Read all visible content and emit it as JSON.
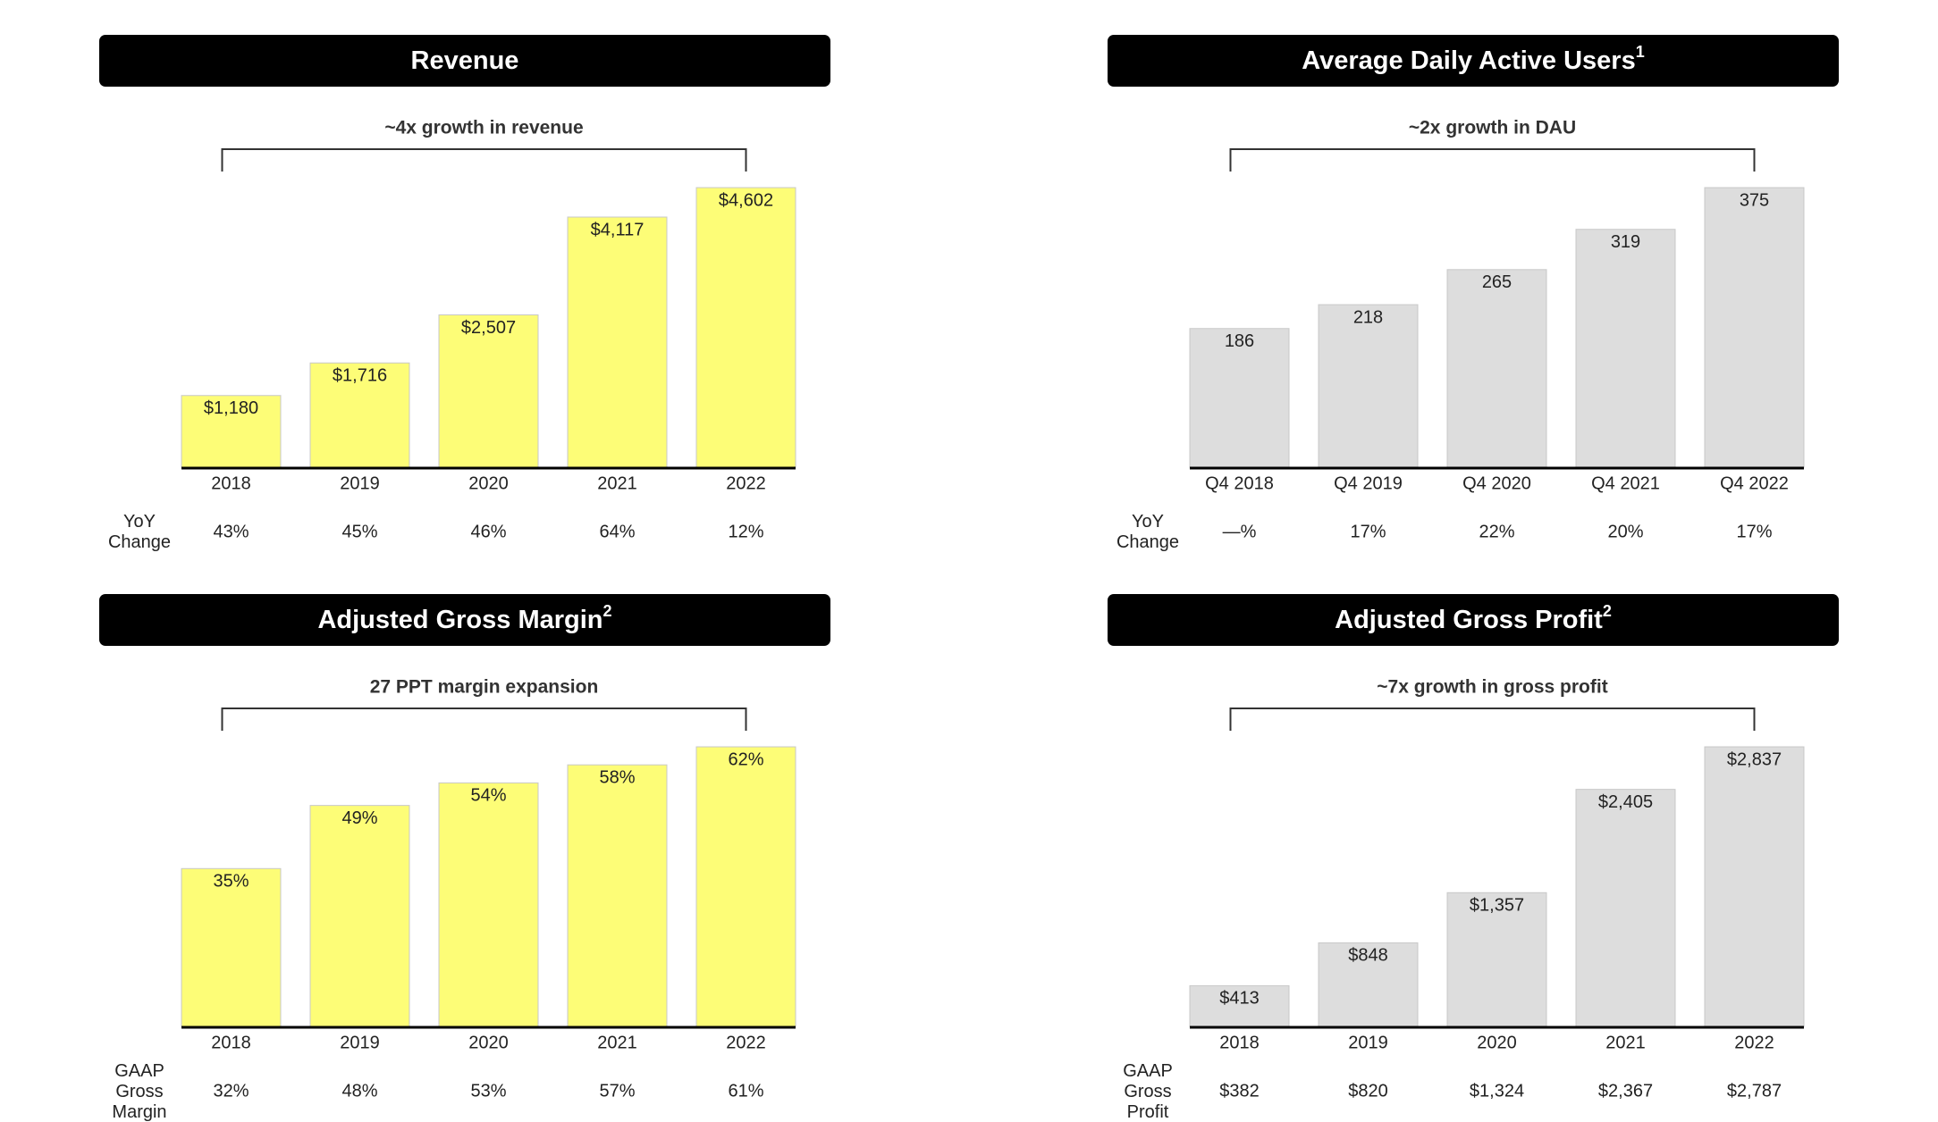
{
  "chart_data": [
    {
      "type": "bar",
      "title": "Revenue",
      "annotation": "~4x growth in revenue",
      "categories": [
        "2018",
        "2019",
        "2020",
        "2021",
        "2022"
      ],
      "values": [
        1180,
        1716,
        2507,
        4117,
        4602
      ],
      "value_labels": [
        "$1,180",
        "$1,716",
        "$2,507",
        "$4,117",
        "$4,602"
      ],
      "color": "#fdfd77",
      "row_label": "YoY Change",
      "row_values": [
        "43%",
        "45%",
        "46%",
        "64%",
        "12%"
      ]
    },
    {
      "type": "bar",
      "title": "Average Daily Active Users",
      "title_sup": "1",
      "annotation": "~2x growth in DAU",
      "categories": [
        "Q4 2018",
        "Q4 2019",
        "Q4 2020",
        "Q4 2021",
        "Q4 2022"
      ],
      "values": [
        186,
        218,
        265,
        319,
        375
      ],
      "color": "#dddddd",
      "row_label": "YoY Change",
      "row_values": [
        "—%",
        "17%",
        "22%",
        "20%",
        "17%"
      ]
    },
    {
      "type": "bar",
      "title": "Adjusted Gross Margin",
      "title_sup": "2",
      "annotation": "27 PPT margin expansion",
      "categories": [
        "2018",
        "2019",
        "2020",
        "2021",
        "2022"
      ],
      "values": [
        35,
        49,
        54,
        58,
        62
      ],
      "value_labels": [
        "35%",
        "49%",
        "54%",
        "58%",
        "62%"
      ],
      "color": "#fdfd77",
      "row_label": "GAAP Gross Margin",
      "row_values": [
        "32%",
        "48%",
        "53%",
        "57%",
        "61%"
      ]
    },
    {
      "type": "bar",
      "title": "Adjusted Gross Profit",
      "title_sup": "2",
      "annotation": "~7x growth in gross profit",
      "categories": [
        "2018",
        "2019",
        "2020",
        "2021",
        "2022"
      ],
      "values": [
        413,
        848,
        1357,
        2405,
        2837
      ],
      "value_labels": [
        "$413",
        "$848",
        "$1,357",
        "$2,405",
        "$2,837"
      ],
      "color": "#dddddd",
      "row_label": "GAAP Gross Profit",
      "row_values": [
        "$382",
        "$820",
        "$1,324",
        "$2,367",
        "$2,787"
      ]
    }
  ]
}
